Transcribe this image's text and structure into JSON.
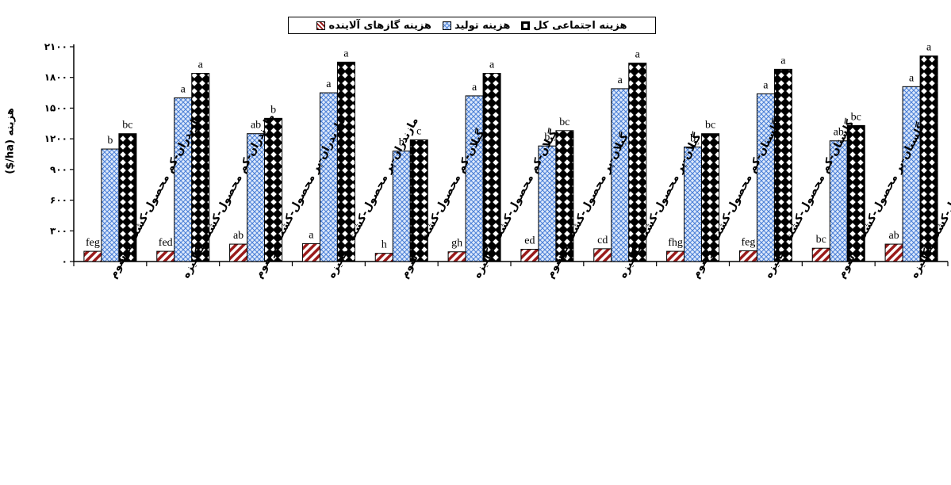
{
  "chart_data": {
    "type": "bar",
    "ylabel": "هزینه (ha/$)",
    "ylim": [
      0,
      2100
    ],
    "yticks": [
      "۰",
      "۳۰۰",
      "۶۰۰",
      "۹۰۰",
      "۱۲۰۰",
      "۱۵۰۰",
      "۱۸۰۰",
      "۲۱۰۰"
    ],
    "ytick_values": [
      0,
      300,
      600,
      900,
      1200,
      1500,
      1800,
      2100
    ],
    "grid": false,
    "legend_position": "top-center",
    "categories": [
      "مازندران-کم محصول-کشت مرسوم",
      "مازندران-کم محصول-کشت مکانیزه",
      "مازندران-پر محصول-کشت مرسوم",
      "مازندران-پر محصول-کشت مکانیزه",
      "گیلان-کم محصول-کشت مرسوم",
      "گیلان-کم محصول-کشت مکانیزه",
      "گیلان-پر محصول-کشت مرسوم",
      "گیلان-پر محصول-کشت مکانیزه",
      "گلستان-کم محصول-کشت مرسوم",
      "گلستان-کم محصول-کشت مکانیزه",
      "گلستان-پر محصول-کشت مرسوم",
      "گلستان-پر محصول-کشت مکانیزه"
    ],
    "series": [
      {
        "name": "هزینه گازهای آلاینده",
        "color": "#9a1b1b",
        "values": [
          100,
          100,
          170,
          175,
          80,
          95,
          120,
          125,
          100,
          105,
          130,
          170
        ],
        "labels": [
          "feg",
          "fed",
          "ab",
          "a",
          "h",
          "gh",
          "ed",
          "cd",
          "fhg",
          "feg",
          "bc",
          "ab"
        ]
      },
      {
        "name": "هزینه تولید",
        "color": "#4a7fd7",
        "values": [
          1100,
          1600,
          1250,
          1650,
          1080,
          1620,
          1130,
          1690,
          1120,
          1640,
          1180,
          1710
        ]
      },
      {
        "name": "هزینه اجتماعی کل",
        "color": "#000000",
        "values": [
          1250,
          1840,
          1400,
          1950,
          1190,
          1840,
          1280,
          1940,
          1250,
          1880,
          1330,
          2010
        ],
        "labels": [
          "bc",
          "a",
          "b",
          "a",
          "c",
          "a",
          "bc",
          "a",
          "bc",
          "a",
          "bc",
          "a"
        ]
      }
    ],
    "middle_labels": [
      "b",
      "a",
      "ab",
      "a",
      "b",
      "a",
      "b",
      "a",
      "b",
      "a",
      "ab",
      "a"
    ]
  }
}
